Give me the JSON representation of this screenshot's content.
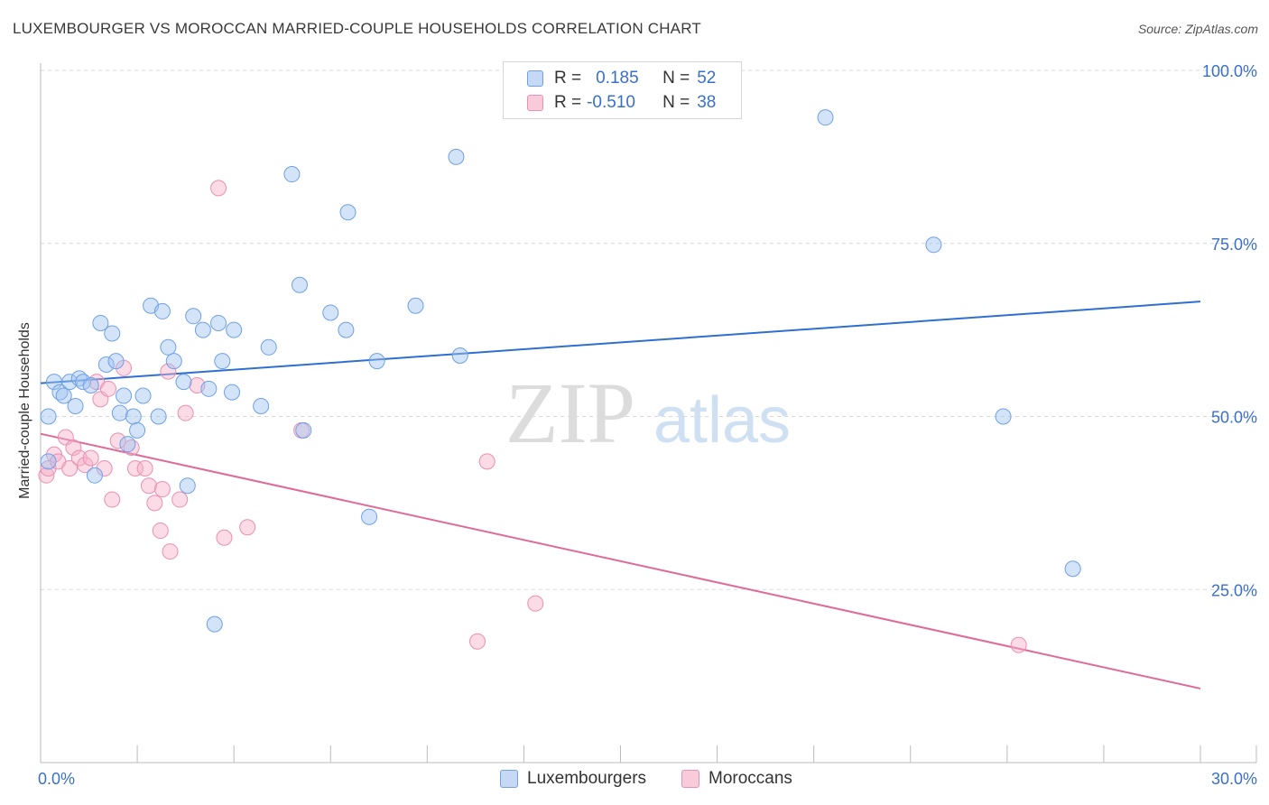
{
  "header": {
    "title": "LUXEMBOURGER VS MOROCCAN MARRIED-COUPLE HOUSEHOLDS CORRELATION CHART",
    "source": "Source: ZipAtlas.com"
  },
  "watermark": {
    "zip": "ZIP",
    "atlas": "atlas"
  },
  "legend": {
    "r_label": "R =",
    "n_label": "N =",
    "rows": [
      {
        "name": "Luxembourgers",
        "r": "0.185",
        "n": "52",
        "color": "#6fa0e8"
      },
      {
        "name": "Moroccans",
        "r": "-0.510",
        "n": "38",
        "color": "#ec8fb0"
      }
    ]
  },
  "chart_data": {
    "type": "scatter",
    "title": "LUXEMBOURGER VS MOROCCAN MARRIED-COUPLE HOUSEHOLDS CORRELATION CHART",
    "xlabel": "",
    "ylabel": "Married-couple Households",
    "xlim": [
      0,
      30
    ],
    "ylim": [
      0,
      105
    ],
    "x_tick_labels": [
      "0.0%",
      "30.0%"
    ],
    "y_ticks": [
      25,
      50,
      75,
      100
    ],
    "y_tick_labels": [
      "25.0%",
      "50.0%",
      "75.0%",
      "100.0%"
    ],
    "grid": true,
    "series": [
      {
        "name": "Luxembourgers",
        "color": "#6fa0e8",
        "trend": {
          "x": [
            0,
            30
          ],
          "y": [
            54.8,
            66.6
          ]
        },
        "points": [
          [
            0.2,
            43.5
          ],
          [
            0.2,
            50.0
          ],
          [
            0.35,
            55.0
          ],
          [
            0.5,
            53.5
          ],
          [
            0.6,
            53.0
          ],
          [
            0.75,
            55.0
          ],
          [
            0.9,
            51.5
          ],
          [
            1.0,
            55.5
          ],
          [
            1.1,
            55.0
          ],
          [
            1.3,
            54.5
          ],
          [
            1.4,
            41.5
          ],
          [
            1.55,
            63.5
          ],
          [
            1.7,
            57.5
          ],
          [
            1.85,
            62.0
          ],
          [
            1.95,
            58.0
          ],
          [
            2.05,
            50.5
          ],
          [
            2.15,
            53.0
          ],
          [
            2.25,
            46.0
          ],
          [
            2.4,
            50.0
          ],
          [
            2.5,
            48.0
          ],
          [
            2.65,
            53.0
          ],
          [
            2.85,
            66.0
          ],
          [
            3.05,
            50.0
          ],
          [
            3.15,
            65.2
          ],
          [
            3.3,
            60.0
          ],
          [
            3.45,
            58.0
          ],
          [
            3.7,
            55.0
          ],
          [
            3.8,
            40.0
          ],
          [
            3.95,
            64.5
          ],
          [
            4.2,
            62.5
          ],
          [
            4.35,
            54.0
          ],
          [
            4.5,
            20.0
          ],
          [
            4.6,
            63.5
          ],
          [
            4.7,
            58.0
          ],
          [
            4.95,
            53.5
          ],
          [
            5.0,
            62.5
          ],
          [
            5.7,
            51.5
          ],
          [
            5.9,
            60.0
          ],
          [
            6.5,
            85.0
          ],
          [
            6.7,
            69.0
          ],
          [
            6.8,
            48.0
          ],
          [
            7.5,
            65.0
          ],
          [
            7.9,
            62.5
          ],
          [
            7.95,
            79.5
          ],
          [
            8.5,
            35.5
          ],
          [
            8.7,
            58.0
          ],
          [
            9.7,
            66.0
          ],
          [
            10.75,
            87.5
          ],
          [
            10.85,
            58.8
          ],
          [
            20.3,
            93.2
          ],
          [
            23.1,
            74.8
          ],
          [
            24.9,
            50.0
          ],
          [
            26.7,
            28.0
          ]
        ]
      },
      {
        "name": "Moroccans",
        "color": "#ec8fb0",
        "trend": {
          "x": [
            0,
            30
          ],
          "y": [
            47.5,
            10.7
          ]
        },
        "points": [
          [
            0.15,
            41.5
          ],
          [
            0.2,
            42.5
          ],
          [
            0.35,
            44.5
          ],
          [
            0.45,
            43.5
          ],
          [
            0.65,
            47.0
          ],
          [
            0.75,
            42.5
          ],
          [
            0.85,
            45.5
          ],
          [
            1.0,
            44.0
          ],
          [
            1.15,
            43.0
          ],
          [
            1.3,
            44.0
          ],
          [
            1.45,
            55.0
          ],
          [
            1.55,
            52.5
          ],
          [
            1.65,
            42.5
          ],
          [
            1.75,
            54.0
          ],
          [
            1.85,
            38.0
          ],
          [
            2.0,
            46.5
          ],
          [
            2.15,
            57.0
          ],
          [
            2.35,
            45.5
          ],
          [
            2.45,
            42.5
          ],
          [
            2.7,
            42.5
          ],
          [
            2.8,
            40.0
          ],
          [
            2.95,
            37.5
          ],
          [
            3.1,
            33.5
          ],
          [
            3.15,
            39.5
          ],
          [
            3.3,
            56.5
          ],
          [
            3.35,
            30.5
          ],
          [
            3.6,
            38.0
          ],
          [
            3.75,
            50.5
          ],
          [
            4.05,
            54.5
          ],
          [
            4.6,
            83.0
          ],
          [
            4.75,
            32.5
          ],
          [
            5.35,
            34.0
          ],
          [
            6.75,
            48.0
          ],
          [
            11.3,
            17.5
          ],
          [
            11.55,
            43.5
          ],
          [
            12.8,
            23.0
          ],
          [
            25.3,
            17.0
          ]
        ]
      }
    ]
  }
}
